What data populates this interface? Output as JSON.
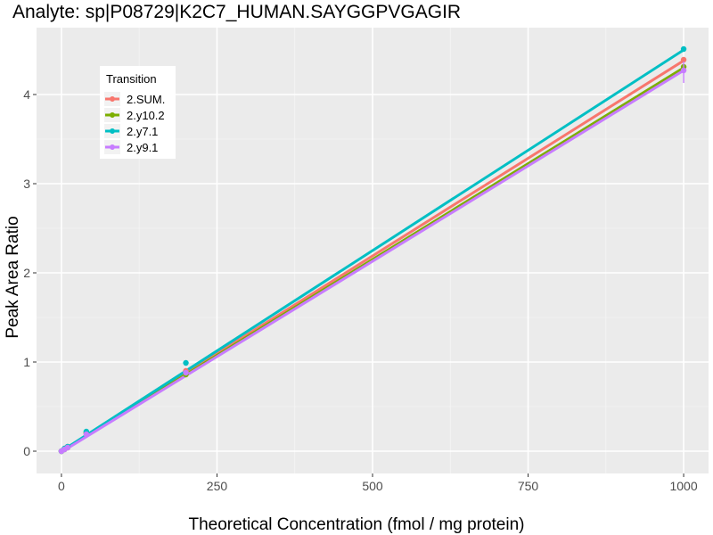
{
  "chart_data": {
    "type": "line",
    "title": "Analyte: sp|P08729|K2C7_HUMAN.SAYGGPVGAGIR",
    "xlabel": "Theoretical Concentration (fmol / mg protein)",
    "ylabel": "Peak Area Ratio",
    "xlim": [
      -40,
      1040
    ],
    "ylim": [
      -0.25,
      4.75
    ],
    "x_ticks": [
      0,
      250,
      500,
      750,
      1000
    ],
    "y_ticks": [
      0,
      1,
      2,
      3,
      4
    ],
    "grid": true,
    "legend": {
      "title": "Transition",
      "position": "top-left"
    },
    "series": [
      {
        "name": "2.SUM.",
        "color": "#F8766D",
        "fit": {
          "slope": 0.00438,
          "intercept": 0.0
        },
        "points": [
          {
            "x": 0,
            "y": 0.0
          },
          {
            "x": 5,
            "y": 0.03
          },
          {
            "x": 10,
            "y": 0.05
          },
          {
            "x": 40,
            "y": 0.21
          },
          {
            "x": 200,
            "y": 0.9
          },
          {
            "x": 1000,
            "y": 4.39
          }
        ]
      },
      {
        "name": "2.y10.2",
        "color": "#7CAE00",
        "fit": {
          "slope": 0.0043,
          "intercept": 0.0
        },
        "points": [
          {
            "x": 0,
            "y": 0.0
          },
          {
            "x": 5,
            "y": 0.02
          },
          {
            "x": 10,
            "y": 0.04
          },
          {
            "x": 40,
            "y": 0.2
          },
          {
            "x": 200,
            "y": 0.86
          },
          {
            "x": 1000,
            "y": 4.31
          }
        ]
      },
      {
        "name": "2.y7.1",
        "color": "#00BFC4",
        "fit": {
          "slope": 0.0045,
          "intercept": 0.0
        },
        "points": [
          {
            "x": 0,
            "y": 0.0
          },
          {
            "x": 5,
            "y": 0.03
          },
          {
            "x": 10,
            "y": 0.05
          },
          {
            "x": 40,
            "y": 0.22
          },
          {
            "x": 200,
            "y": 0.99
          },
          {
            "x": 1000,
            "y": 4.51
          }
        ]
      },
      {
        "name": "2.y9.1",
        "color": "#C77CFF",
        "fit": {
          "slope": 0.00428,
          "intercept": -0.01
        },
        "points": [
          {
            "x": 0,
            "y": 0.0
          },
          {
            "x": 5,
            "y": 0.02
          },
          {
            "x": 10,
            "y": 0.04
          },
          {
            "x": 40,
            "y": 0.19
          },
          {
            "x": 200,
            "y": 0.88
          },
          {
            "x": 1000,
            "y": 4.27
          }
        ]
      }
    ]
  }
}
